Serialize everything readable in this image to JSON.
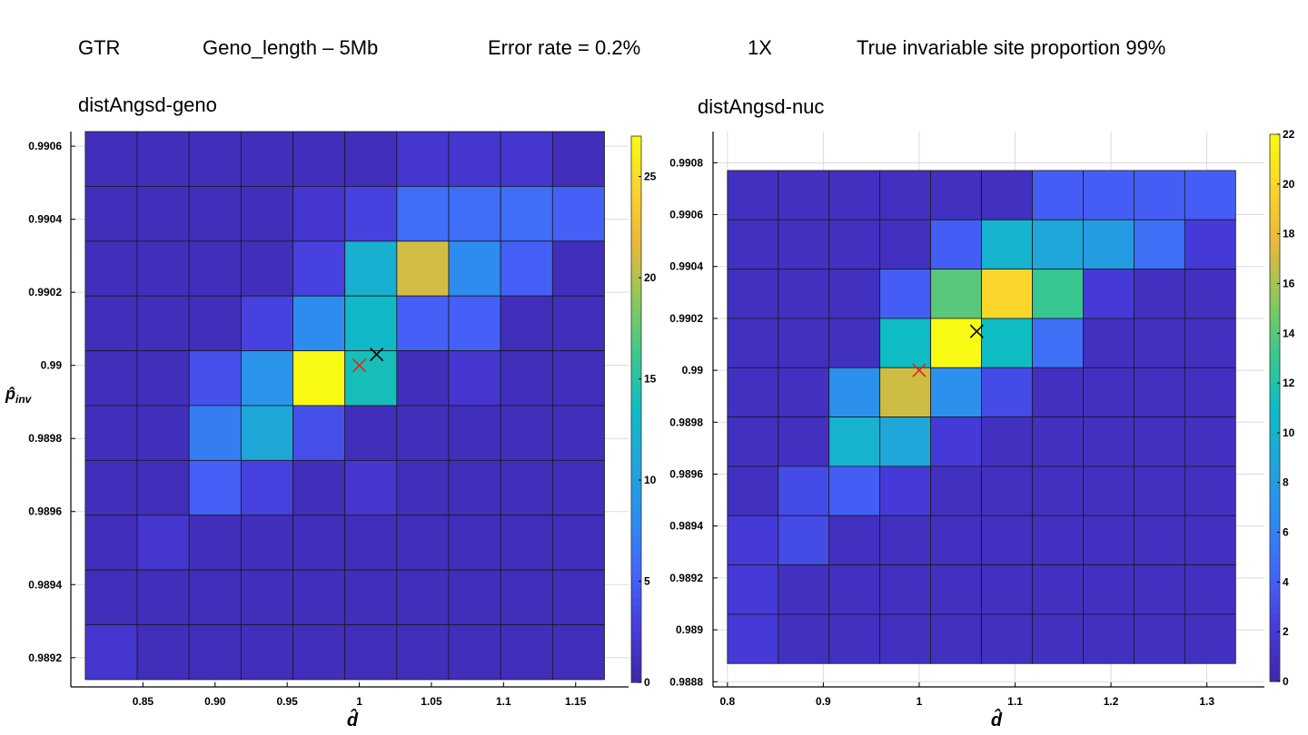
{
  "header": {
    "model": "GTR",
    "geno_length": "Geno_length – 5Mb",
    "error_rate": "Error rate = 0.2%",
    "coverage": "1X",
    "true_invariable": "True invariable site proportion 99%"
  },
  "colors": {
    "marker_estimate": "#000000",
    "marker_true": "#e8221b",
    "grid": "#dcdcdc"
  },
  "chart_data": [
    {
      "type": "heatmap",
      "title": "distAngsd-geno",
      "xlabel": "d̂",
      "ylabel": "p̂inv",
      "colormap": "parula",
      "xlim": [
        0.8,
        1.1867
      ],
      "ylim": [
        0.98912,
        0.99064
      ],
      "x_ticks": [
        "0.85",
        "0.90",
        "0.95",
        "1",
        "1.05",
        "1.1",
        "1.15"
      ],
      "x_tick_values": [
        0.85,
        0.9,
        0.95,
        1.0,
        1.05,
        1.1,
        1.15
      ],
      "y_ticks": [
        "0.9892",
        "0.9894",
        "0.9896",
        "0.9898",
        "0.99",
        "0.9902",
        "0.9904",
        "0.9906"
      ],
      "y_tick_values": [
        0.9892,
        0.9894,
        0.9896,
        0.9898,
        0.99,
        0.9902,
        0.9904,
        0.9906
      ],
      "x_edges": [
        0.81,
        0.846,
        0.882,
        0.918,
        0.954,
        0.99,
        1.026,
        1.062,
        1.098,
        1.134,
        1.17
      ],
      "y_edges": [
        0.98914,
        0.98929,
        0.98944,
        0.98959,
        0.98974,
        0.98989,
        0.99004,
        0.99019,
        0.99034,
        0.99049,
        0.99064
      ],
      "colorbar": {
        "min": 0,
        "max": 27,
        "ticks": [
          0,
          5,
          10,
          15,
          20,
          25
        ]
      },
      "grid": true,
      "values_top_to_bottom": [
        [
          1,
          1,
          1,
          1,
          1,
          1,
          2,
          2,
          2,
          1
        ],
        [
          1,
          1,
          1,
          1,
          2,
          3,
          6,
          6,
          6,
          5
        ],
        [
          1,
          1,
          1,
          1,
          3,
          12,
          21,
          8,
          5,
          1
        ],
        [
          1,
          1,
          1,
          3,
          8,
          13,
          5,
          5,
          1,
          1
        ],
        [
          1,
          1,
          4,
          9,
          27,
          14,
          1,
          2,
          1,
          1
        ],
        [
          1,
          1,
          7,
          11,
          4,
          1,
          1,
          1,
          1,
          1
        ],
        [
          1,
          1,
          5,
          3,
          1,
          2,
          1,
          1,
          1,
          1
        ],
        [
          1,
          2,
          1,
          1,
          1,
          1,
          1,
          1,
          1,
          1
        ],
        [
          1,
          1,
          1,
          1,
          1,
          1,
          1,
          1,
          1,
          1
        ],
        [
          2,
          1,
          1,
          1,
          1,
          1,
          1,
          1,
          1,
          1
        ]
      ],
      "markers": [
        {
          "kind": "estimate",
          "x": 1.012,
          "y": 0.99003
        },
        {
          "kind": "true",
          "x": 1.0,
          "y": 0.99
        }
      ]
    },
    {
      "type": "heatmap",
      "title": "distAngsd-nuc",
      "xlabel": "d̂",
      "ylabel": "",
      "colormap": "parula",
      "xlim": [
        0.785,
        1.36
      ],
      "ylim": [
        0.98878,
        0.99092
      ],
      "x_ticks": [
        "0.8",
        "0.9",
        "1",
        "1.1",
        "1.2",
        "1.3"
      ],
      "x_tick_values": [
        0.8,
        0.9,
        1.0,
        1.1,
        1.2,
        1.3
      ],
      "y_ticks": [
        "0.9888",
        "0.989",
        "0.9892",
        "0.9894",
        "0.9896",
        "0.9898",
        "0.99",
        "0.9902",
        "0.9904",
        "0.9906",
        "0.9908"
      ],
      "y_tick_values": [
        0.9888,
        0.989,
        0.9892,
        0.9894,
        0.9896,
        0.9898,
        0.99,
        0.9902,
        0.9904,
        0.9906,
        0.9908
      ],
      "x_edges": [
        0.8,
        0.853,
        0.906,
        0.959,
        1.012,
        1.065,
        1.118,
        1.171,
        1.224,
        1.277,
        1.33
      ],
      "y_edges": [
        0.98887,
        0.98906,
        0.98925,
        0.98944,
        0.98963,
        0.98982,
        0.99001,
        0.9902,
        0.99039,
        0.99058,
        0.99077
      ],
      "colorbar": {
        "min": 0,
        "max": 22,
        "ticks": [
          0,
          2,
          4,
          6,
          8,
          10,
          12,
          14,
          16,
          18,
          20,
          22
        ]
      },
      "grid": true,
      "values_top_to_bottom": [
        [
          1,
          1,
          1,
          1,
          1,
          1,
          4,
          4,
          4,
          4
        ],
        [
          1,
          1,
          1,
          1,
          4,
          10,
          9,
          8,
          5,
          2
        ],
        [
          1,
          1,
          1,
          4,
          14,
          20,
          13,
          2,
          1,
          1
        ],
        [
          1,
          1,
          1,
          11,
          22,
          11,
          5,
          1,
          1,
          1
        ],
        [
          1,
          1,
          7,
          17,
          7,
          3,
          1,
          1,
          1,
          1
        ],
        [
          1,
          1,
          10,
          9,
          2,
          1,
          1,
          1,
          1,
          1
        ],
        [
          1,
          3,
          4,
          2,
          1,
          1,
          1,
          1,
          1,
          1
        ],
        [
          2,
          3,
          1,
          1,
          1,
          1,
          1,
          1,
          1,
          1
        ],
        [
          2,
          1,
          1,
          1,
          1,
          1,
          1,
          1,
          1,
          1
        ],
        [
          2,
          1,
          1,
          1,
          1,
          1,
          1,
          1,
          1,
          1
        ]
      ],
      "markers": [
        {
          "kind": "estimate",
          "x": 1.06,
          "y": 0.99015
        },
        {
          "kind": "true",
          "x": 1.0,
          "y": 0.99
        }
      ]
    }
  ]
}
